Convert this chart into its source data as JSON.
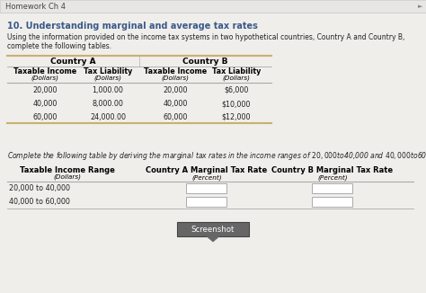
{
  "title": "Homework Ch 4",
  "question_num": "10. Understanding marginal and average tax rates",
  "question_num_color": "#3a5a8a",
  "intro_text": "Using the information provided on the income tax systems in two hypothetical countries, Country A and Country B, complete the following tables.",
  "table1": {
    "country_a_header": "Country A",
    "country_b_header": "Country B",
    "col_headers": [
      "Taxable Income",
      "Tax Liability",
      "Taxable Income",
      "Tax Liability"
    ],
    "col_subheaders": [
      "(Dollars)",
      "(Dollars)",
      "(Dollars)",
      "(Dollars)"
    ],
    "rows": [
      [
        "20,000",
        "1,000.00",
        "20,000",
        "$6,000"
      ],
      [
        "40,000",
        "8,000.00",
        "40,000",
        "$10,000"
      ],
      [
        "60,000",
        "24,000.00",
        "60,000",
        "$12,000"
      ]
    ]
  },
  "italic_text": "Complete the following table by deriving the marginal tax rates in the income ranges of $20,000 to $40,000 and $40,000 to $60,000 for each country.",
  "table2": {
    "col_headers": [
      "Taxable Income Range",
      "Country A Marginal Tax Rate",
      "Country B Marginal Tax Rate"
    ],
    "col_subheaders": [
      "(Dollars)",
      "(Percent)",
      "(Percent)"
    ],
    "rows": [
      [
        "20,000 to 40,000",
        "",
        ""
      ],
      [
        "40,000 to 60,000",
        "",
        ""
      ]
    ]
  },
  "screenshot_btn": "Screenshot",
  "bg_color": "#f0eeeb",
  "header_bg": "#e8e6e3",
  "table_line_color": "#c8b070",
  "header_line_color": "#999999",
  "PW": 474,
  "PH": 326
}
